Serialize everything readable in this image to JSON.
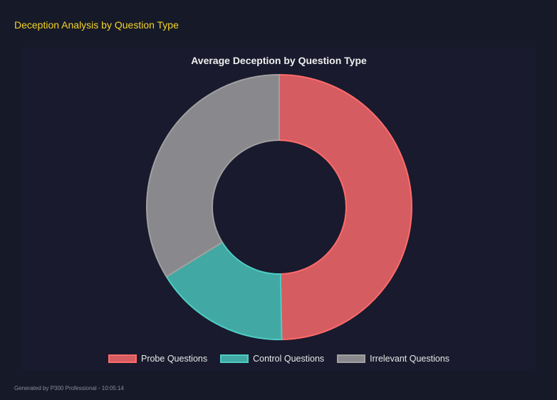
{
  "page": {
    "title": "Deception Analysis by Question Type",
    "footer": "Generated by P300 Professional - 10:05:14"
  },
  "chart_data": {
    "type": "doughnut",
    "title": "Average Deception by Question Type",
    "categories": [
      "Probe Questions",
      "Control Questions",
      "Irrelevant Questions"
    ],
    "values": [
      49.7,
      16.5,
      33.8
    ],
    "colors": {
      "fill": [
        "#d55c60",
        "#41a8a3",
        "#89888c"
      ],
      "border": [
        "#ff6b6b",
        "#4ecdc4",
        "#a0a0a0"
      ]
    },
    "legend": "bottom"
  }
}
